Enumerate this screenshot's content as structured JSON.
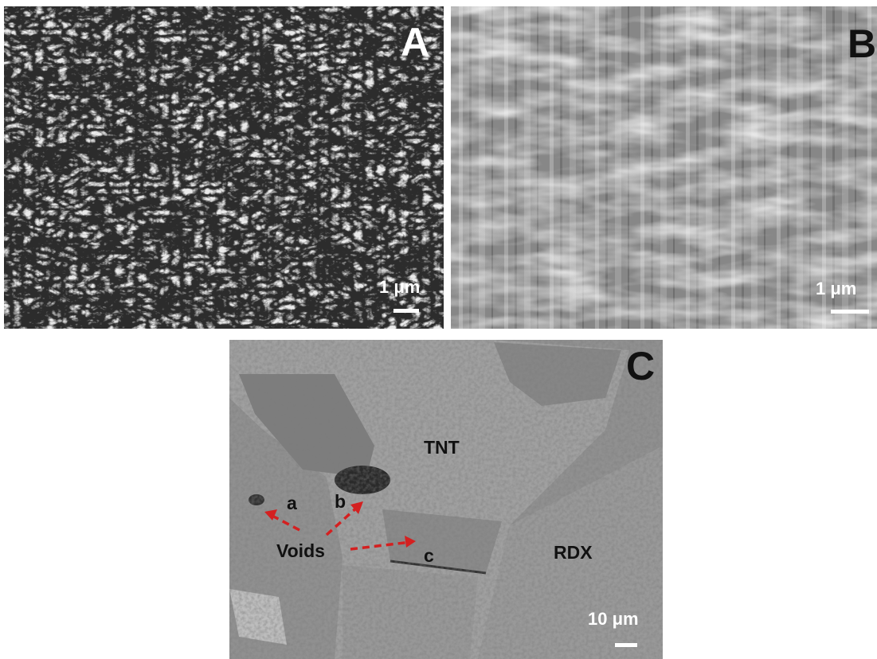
{
  "panels": [
    {
      "label": "A",
      "scale_bar": "1 μm"
    },
    {
      "label": "B",
      "scale_bar": "1 μm"
    },
    {
      "label": "C",
      "scale_bar": "10 μm",
      "annotations": {
        "tnt": "TNT",
        "rdx": "RDX",
        "voids": "Voids",
        "a": "a",
        "b": "b",
        "c": "c"
      }
    }
  ]
}
